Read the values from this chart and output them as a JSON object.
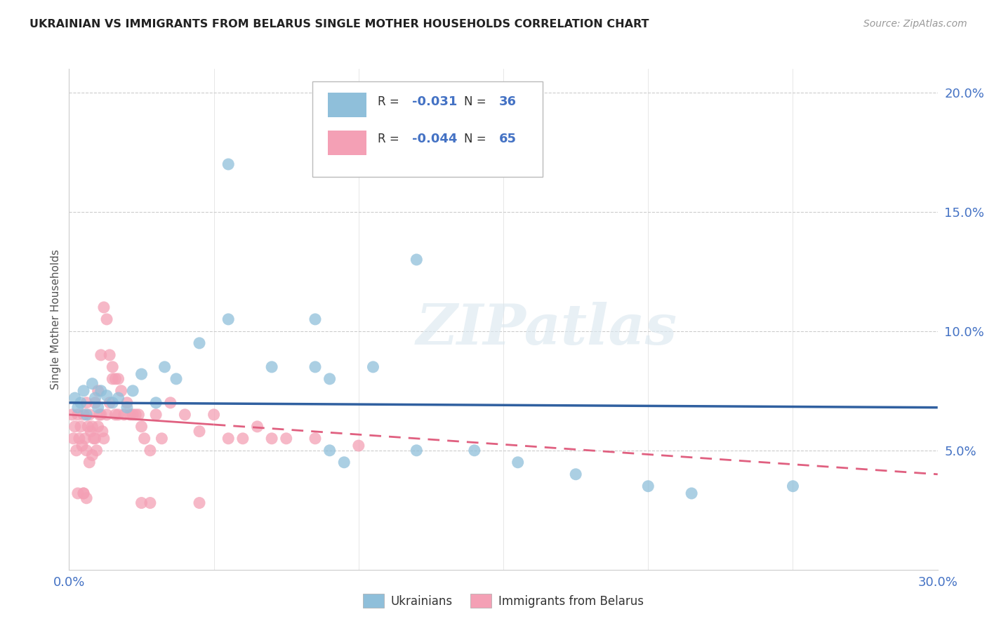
{
  "title": "UKRAINIAN VS IMMIGRANTS FROM BELARUS SINGLE MOTHER HOUSEHOLDS CORRELATION CHART",
  "source": "Source: ZipAtlas.com",
  "ylabel": "Single Mother Households",
  "xlim": [
    0.0,
    30.0
  ],
  "ylim": [
    0.0,
    21.0
  ],
  "yticks": [
    5.0,
    10.0,
    15.0,
    20.0
  ],
  "xticks": [
    0.0,
    5.0,
    10.0,
    15.0,
    20.0,
    25.0,
    30.0
  ],
  "legend_blue_r_val": "-0.031",
  "legend_blue_n_val": "36",
  "legend_pink_r_val": "-0.044",
  "legend_pink_n_val": "65",
  "blue_color": "#8fbfda",
  "pink_color": "#f4a0b5",
  "blue_line_color": "#3060a0",
  "pink_line_color": "#e06080",
  "watermark": "ZIPatlas",
  "blue_line_x0": 0.0,
  "blue_line_y0": 7.0,
  "blue_line_x1": 30.0,
  "blue_line_y1": 6.8,
  "pink_line_x0": 0.0,
  "pink_line_y0": 6.5,
  "pink_line_x1": 30.0,
  "pink_line_y1": 4.0,
  "ukrainians_x": [
    0.2,
    0.3,
    0.4,
    0.5,
    0.6,
    0.8,
    0.9,
    1.0,
    1.1,
    1.3,
    1.5,
    1.7,
    2.0,
    2.2,
    2.5,
    3.0,
    3.3,
    3.7,
    4.5,
    5.5,
    7.0,
    8.5,
    9.0,
    9.5,
    10.5,
    12.0,
    14.0,
    15.5,
    17.5,
    20.0,
    21.5,
    25.0,
    5.5,
    12.0,
    8.5,
    9.0
  ],
  "ukrainians_y": [
    7.2,
    6.8,
    7.0,
    7.5,
    6.5,
    7.8,
    7.2,
    6.8,
    7.5,
    7.3,
    7.0,
    7.2,
    6.8,
    7.5,
    8.2,
    7.0,
    8.5,
    8.0,
    9.5,
    10.5,
    8.5,
    8.5,
    5.0,
    4.5,
    8.5,
    13.0,
    5.0,
    4.5,
    4.0,
    3.5,
    3.2,
    3.5,
    17.0,
    5.0,
    10.5,
    8.0
  ],
  "belarus_x": [
    0.1,
    0.15,
    0.2,
    0.25,
    0.3,
    0.3,
    0.35,
    0.4,
    0.45,
    0.5,
    0.5,
    0.55,
    0.6,
    0.6,
    0.65,
    0.7,
    0.7,
    0.75,
    0.8,
    0.8,
    0.85,
    0.9,
    0.9,
    0.95,
    1.0,
    1.0,
    1.05,
    1.1,
    1.1,
    1.15,
    1.2,
    1.2,
    1.3,
    1.3,
    1.4,
    1.4,
    1.5,
    1.5,
    1.6,
    1.6,
    1.7,
    1.7,
    1.8,
    1.9,
    2.0,
    2.1,
    2.2,
    2.3,
    2.4,
    2.5,
    2.6,
    2.8,
    3.0,
    3.2,
    3.5,
    4.0,
    4.5,
    5.0,
    5.5,
    6.0,
    6.5,
    7.0,
    7.5,
    8.5,
    10.0
  ],
  "belarus_y": [
    6.5,
    5.5,
    6.0,
    5.0,
    6.5,
    3.2,
    5.5,
    6.0,
    5.2,
    6.5,
    3.2,
    5.5,
    7.0,
    5.0,
    6.0,
    6.5,
    4.5,
    5.8,
    6.0,
    4.8,
    5.5,
    7.0,
    5.5,
    5.0,
    7.5,
    6.0,
    6.5,
    9.0,
    6.5,
    5.8,
    11.0,
    5.5,
    10.5,
    6.5,
    9.0,
    7.0,
    8.5,
    8.0,
    8.0,
    6.5,
    8.0,
    6.5,
    7.5,
    6.5,
    7.0,
    6.5,
    6.5,
    6.5,
    6.5,
    6.0,
    5.5,
    5.0,
    6.5,
    5.5,
    7.0,
    6.5,
    5.8,
    6.5,
    5.5,
    5.5,
    6.0,
    5.5,
    5.5,
    5.5,
    5.2
  ],
  "belarus_low_x": [
    0.5,
    0.6,
    2.5,
    2.8,
    4.5
  ],
  "belarus_low_y": [
    3.2,
    3.0,
    2.8,
    2.8,
    2.8
  ]
}
